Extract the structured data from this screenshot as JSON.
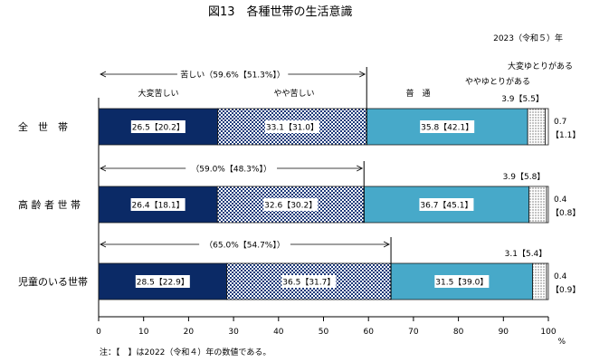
{
  "chart_data": {
    "type": "bar",
    "orientation": "horizontal",
    "stacked": true,
    "title": "図13　各種世帯の生活意識",
    "subtitle": "2023（令和５）年",
    "categories": [
      "全　世　帯",
      "高 齢 者 世 帯",
      "児童のいる世帯"
    ],
    "series": [
      {
        "name": "大変苦しい",
        "values": [
          26.5,
          26.4,
          28.5
        ],
        "prev_labels": [
          "20.2",
          "18.1",
          "22.9"
        ],
        "color": "#0b2a66"
      },
      {
        "name": "やや苦しい",
        "values": [
          33.1,
          32.6,
          36.5
        ],
        "prev_labels": [
          "31.0",
          "30.2",
          "31.7"
        ],
        "color": "#3a4f86"
      },
      {
        "name": "普　通",
        "values": [
          35.8,
          36.7,
          31.5
        ],
        "prev_labels": [
          "42.1",
          "45.1",
          "39.0"
        ],
        "color": "#47a9c9"
      },
      {
        "name": "ややゆとりがある",
        "values": [
          3.9,
          3.9,
          3.1
        ],
        "prev_labels": [
          "5.5",
          "5.8",
          "5.4"
        ],
        "color": "#e9eef2"
      },
      {
        "name": "大変ゆとりがある",
        "values": [
          0.7,
          0.4,
          0.4
        ],
        "prev_labels": [
          "1.1",
          "0.8",
          "0.9"
        ],
        "color": "#ffffff"
      }
    ],
    "brackets": [
      {
        "label": "苦しい（59.6%【51.3%】）",
        "end": 59.6
      },
      {
        "label": "（59.0%【48.3%】）",
        "end": 59.0
      },
      {
        "label": "（65.0%【54.7%】）",
        "end": 65.0
      }
    ],
    "xlim": [
      0,
      100
    ],
    "xticks": [
      "0",
      "10",
      "20",
      "30",
      "40",
      "50",
      "60",
      "70",
      "80",
      "90",
      "100"
    ],
    "xunit": "%",
    "note": "注：【　】は2022（令和４）年の数値である。"
  }
}
